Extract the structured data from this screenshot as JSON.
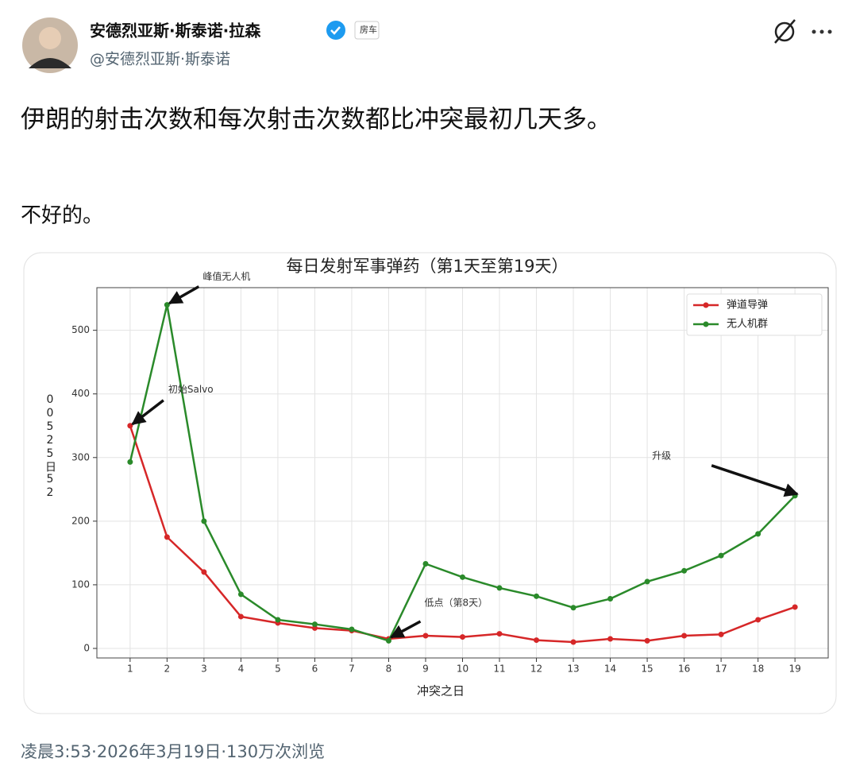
{
  "post": {
    "author_name": "安德烈亚斯·斯泰诺·拉森",
    "tag": "房车",
    "handle": "@安德烈亚斯·斯泰诺",
    "text": "伊朗的射击次数和每次射击次数都比冲突最初几天多。",
    "text2": "不好的。",
    "footer": "凌晨3:53·2026年3月19日·130万次浏览"
  },
  "chart_data": {
    "type": "line",
    "title": "每日发射军事弹药（第1天至第19天）",
    "x_label": "冲突之日",
    "y_label": "00525日52",
    "x": [
      1,
      2,
      3,
      4,
      5,
      6,
      7,
      8,
      9,
      10,
      11,
      12,
      13,
      14,
      15,
      16,
      17,
      18,
      19
    ],
    "xlim": [
      0.1,
      19.9
    ],
    "xticks": [
      1,
      2,
      3,
      4,
      5,
      6,
      7,
      8,
      9,
      10,
      11,
      12,
      13,
      14,
      15,
      16,
      17,
      18,
      19
    ],
    "ylim": [
      -15,
      567
    ],
    "yticks": [
      0,
      100,
      200,
      300,
      400,
      500
    ],
    "grid": true,
    "legend": "upper right",
    "series": [
      {
        "name": "弹道导弹",
        "color": "#d62728",
        "values": [
          350,
          175,
          120,
          50,
          40,
          32,
          28,
          15,
          20,
          18,
          23,
          13,
          10,
          15,
          12,
          20,
          22,
          45,
          65
        ]
      },
      {
        "name": "无人机群",
        "color": "#2a8a2a",
        "values": [
          293,
          540,
          200,
          85,
          45,
          38,
          30,
          12,
          133,
          112,
          95,
          82,
          64,
          78,
          105,
          122,
          146,
          180,
          240
        ]
      }
    ],
    "annotations": [
      {
        "text": "峰值无人机",
        "x": 2,
        "y": 540
      },
      {
        "text": "初始Salvo",
        "x": 1,
        "y": 350
      },
      {
        "text": "升级",
        "x": 19,
        "y": 240
      },
      {
        "text": "低点（第8天）",
        "x": 8,
        "y": 15
      }
    ]
  }
}
